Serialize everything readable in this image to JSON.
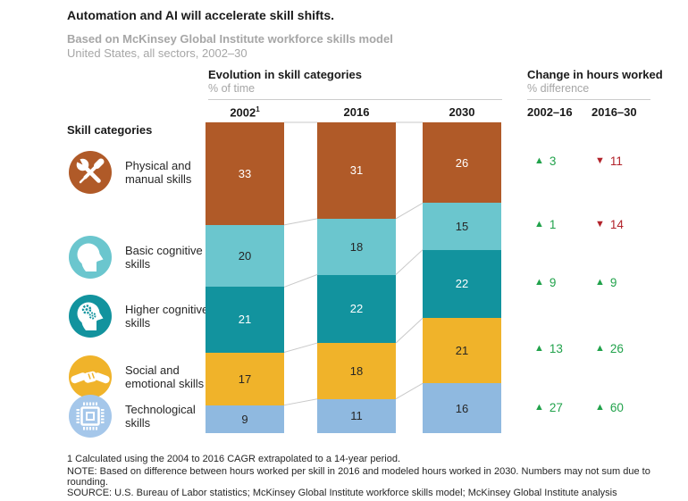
{
  "header": {
    "title": "Automation and AI will accelerate skill shifts.",
    "subtitle": "Based on McKinsey Global Institute workforce skills model",
    "scope": "United States, all sectors, 2002–30"
  },
  "left_panel": {
    "title": "Evolution in skill categories",
    "unit": "% of time"
  },
  "right_panel": {
    "title": "Change in hours worked",
    "unit": "% difference"
  },
  "skill_categories_label": "Skill categories",
  "glyphs": {
    "up": "▲",
    "down": "▼"
  },
  "colors": {
    "up_green": "#21A24B",
    "down_red": "#B2222A",
    "rule_gray": "#cccccc",
    "connector_gray": "#c9c9c9",
    "muted_text": "#a6a6a6"
  },
  "chart_data": {
    "type": "bar",
    "subtype": "stacked-100-percent",
    "title": "Evolution in skill categories",
    "ylabel": "% of time",
    "x": [
      "2002",
      "2016",
      "2030"
    ],
    "x_marks": [
      "1",
      "",
      ""
    ],
    "series": [
      {
        "name": "Physical and manual skills",
        "icon": "tools-icon",
        "color": "#B05A28",
        "icon_color": "#B05A28",
        "value_text_color": "#ffffff",
        "values": [
          33,
          31,
          26
        ],
        "changes": [
          {
            "dir": "up",
            "value": 3
          },
          {
            "dir": "down",
            "value": 11
          }
        ]
      },
      {
        "name": "Basic cognitive skills",
        "icon": "head-icon",
        "color": "#6BC6CE",
        "icon_color": "#6BC6CE",
        "value_text_color": "#262626",
        "values": [
          20,
          18,
          15
        ],
        "changes": [
          {
            "dir": "up",
            "value": 1
          },
          {
            "dir": "down",
            "value": 14
          }
        ]
      },
      {
        "name": "Higher cognitive skills",
        "icon": "head-gears-icon",
        "color": "#12939E",
        "icon_color": "#12939E",
        "value_text_color": "#ffffff",
        "values": [
          21,
          22,
          22
        ],
        "changes": [
          {
            "dir": "up",
            "value": 9
          },
          {
            "dir": "up",
            "value": 9
          }
        ]
      },
      {
        "name": "Social and emotional skills",
        "icon": "handshake-icon",
        "color": "#F0B32A",
        "icon_color": "#F0B32A",
        "value_text_color": "#262626",
        "values": [
          17,
          18,
          21
        ],
        "changes": [
          {
            "dir": "up",
            "value": 13
          },
          {
            "dir": "up",
            "value": 26
          }
        ]
      },
      {
        "name": "Technological skills",
        "icon": "chip-icon",
        "color": "#8FB9E0",
        "icon_color": "#A5C7EA",
        "value_text_color": "#262626",
        "values": [
          9,
          11,
          16
        ],
        "changes": [
          {
            "dir": "up",
            "value": 27
          },
          {
            "dir": "up",
            "value": 60
          }
        ]
      }
    ],
    "change_columns": [
      "2002–16",
      "2016–30"
    ],
    "legend_position": "left",
    "grid": false
  },
  "footnotes": {
    "footnote1": "1   Calculated using the 2004 to 2016 CAGR extrapolated to a 14-year period.",
    "note": "NOTE: Based on difference between hours worked per skill in 2016 and modeled hours worked in 2030. Numbers may not sum due to rounding.",
    "source": "SOURCE:  U.S. Bureau of Labor statistics; McKinsey Global Institute workforce skills model; McKinsey Global Institute analysis"
  }
}
